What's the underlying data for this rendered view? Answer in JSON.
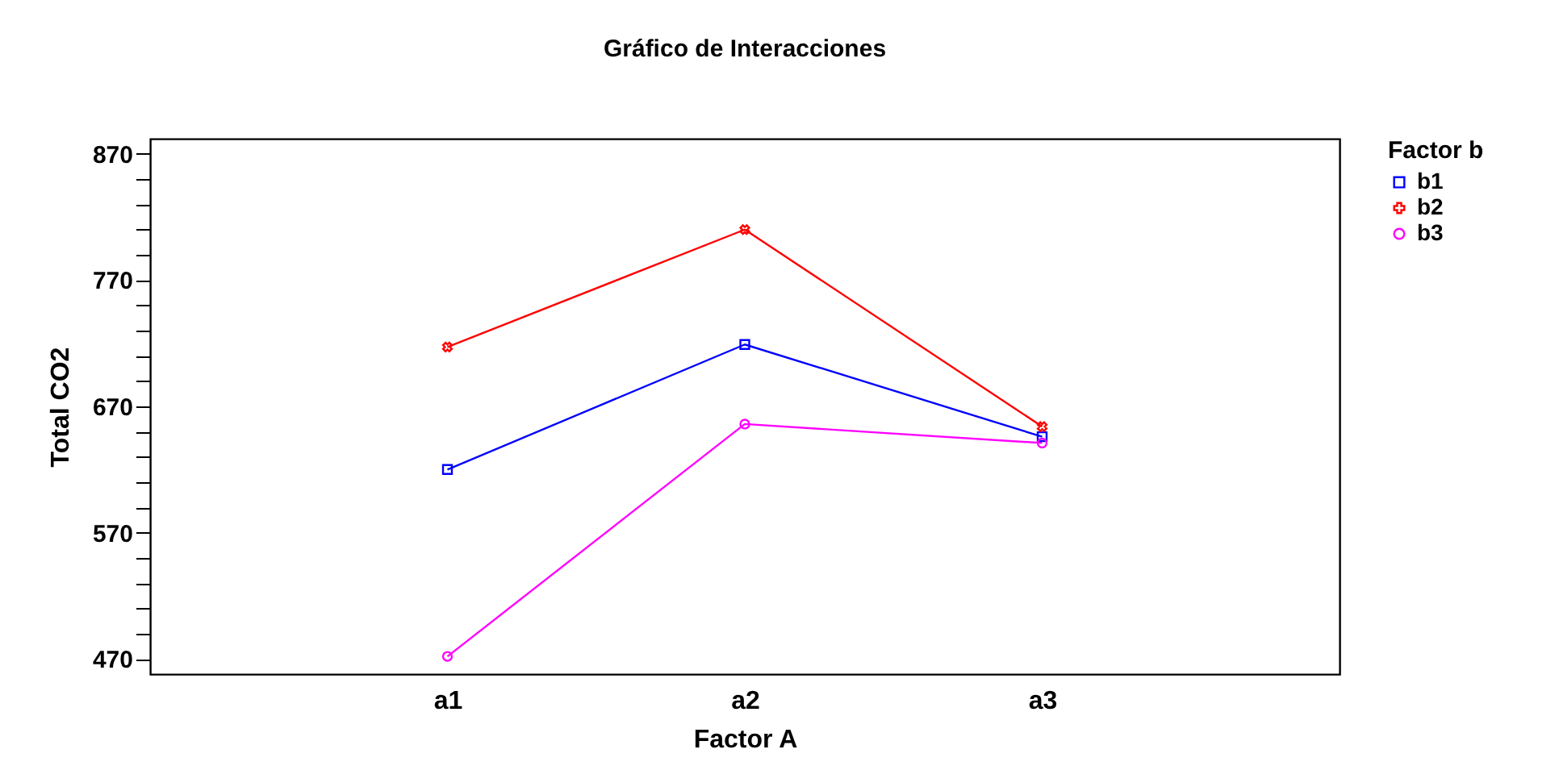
{
  "chart_data": {
    "type": "line",
    "title": "Gráfico de Interacciones",
    "xlabel": "Factor A",
    "ylabel": "Total CO2",
    "legend_title": "Factor b",
    "legend": "top right",
    "grid": false,
    "categories": [
      "a1",
      "a2",
      "a3"
    ],
    "ylim": [
      458,
      882
    ],
    "yticks": [
      {
        "value": 470,
        "label": "470"
      },
      {
        "value": 490,
        "label": null
      },
      {
        "value": 510,
        "label": null
      },
      {
        "value": 530,
        "label": null
      },
      {
        "value": 550,
        "label": null
      },
      570,
      {
        "value": 590,
        "label": null
      },
      {
        "value": 610,
        "label": null
      },
      {
        "value": 630,
        "label": null
      },
      {
        "value": 650,
        "label": null
      },
      670,
      {
        "value": 690,
        "label": null
      },
      {
        "value": 710,
        "label": null
      },
      {
        "value": 730,
        "label": null
      },
      {
        "value": 750,
        "label": null
      },
      770,
      {
        "value": 790,
        "label": null
      },
      {
        "value": 810,
        "label": null
      },
      {
        "value": 830,
        "label": null
      },
      {
        "value": 850,
        "label": null
      },
      870
    ],
    "series": [
      {
        "name": "b1",
        "color": "#0000ff",
        "marker": "square",
        "values": [
          620,
          719,
          646
        ]
      },
      {
        "name": "b2",
        "color": "#ff0000",
        "marker": "cross",
        "values": [
          717,
          810,
          654
        ]
      },
      {
        "name": "b3",
        "color": "#ff00ff",
        "marker": "circle",
        "values": [
          472,
          656,
          641
        ]
      }
    ]
  }
}
